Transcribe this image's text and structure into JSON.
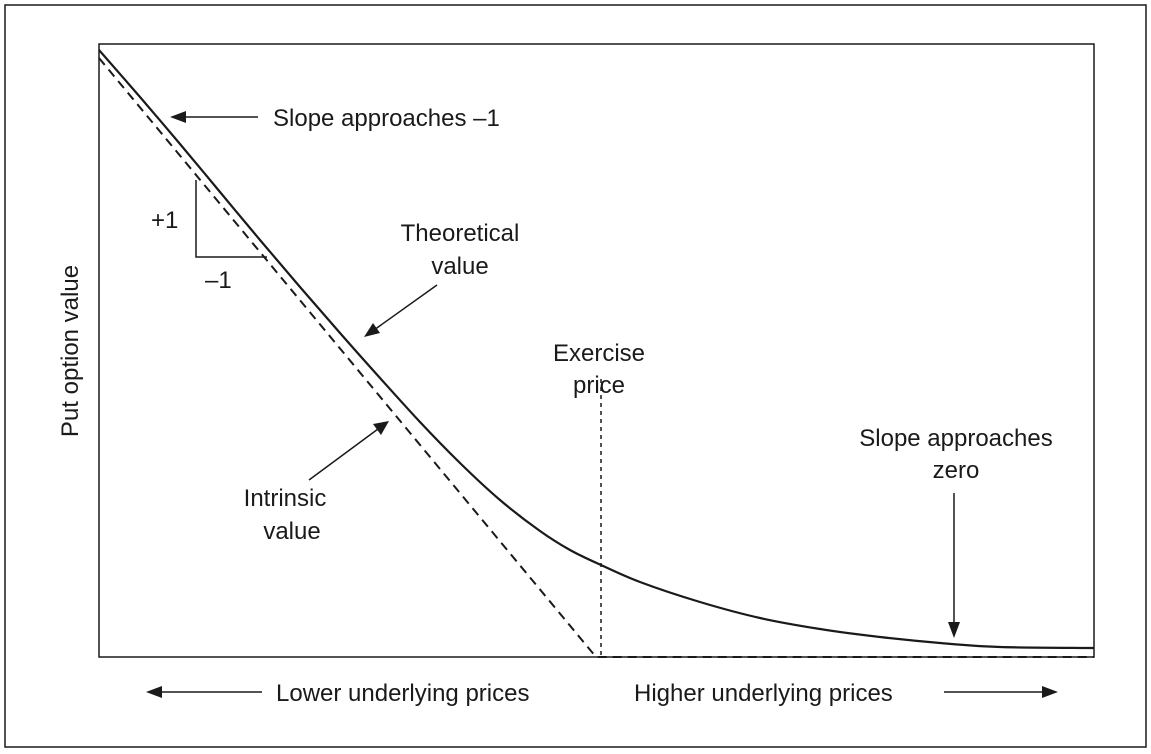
{
  "diagram": {
    "y_axis_label": "Put option value",
    "x_axis_left_label": "Lower underlying prices",
    "x_axis_right_label": "Higher underlying prices",
    "annotations": {
      "slope_neg_one": "Slope approaches –1",
      "plus_one": "+1",
      "minus_one": "–1",
      "theoretical_line1": "Theoretical",
      "theoretical_line2": "value",
      "exercise_line1": "Exercise",
      "exercise_line2": "price",
      "slope_zero_line1": "Slope approaches",
      "slope_zero_line2": "zero",
      "intrinsic_line1": "Intrinsic",
      "intrinsic_line2": "value"
    },
    "colors": {
      "ink": "#1a1a1a",
      "background": "#ffffff"
    }
  },
  "chart_data": {
    "type": "line",
    "series": [
      {
        "name": "Theoretical value",
        "style": "solid"
      },
      {
        "name": "Intrinsic value",
        "style": "dashed"
      }
    ],
    "marker": "Exercise price",
    "grid": false,
    "ticks": false
  }
}
